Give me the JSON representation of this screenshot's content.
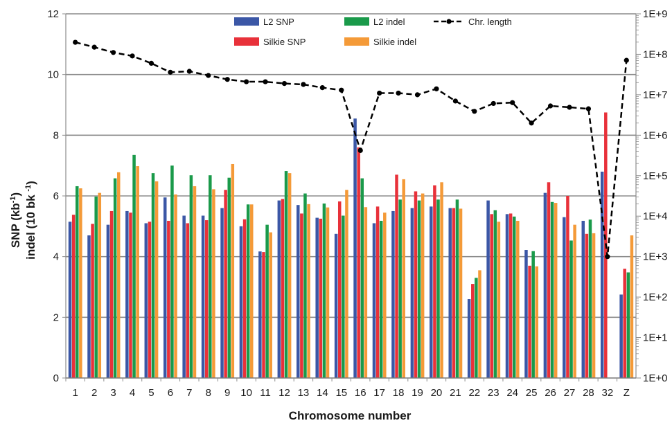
{
  "chart_data": {
    "type": "bar",
    "title": "",
    "xlabel": "Chromosome number",
    "ylabel_left": [
      "SNP (kb",
      "-1",
      ")",
      "indel (10 bk ",
      "-1",
      ")"
    ],
    "ylabel_right": "",
    "categories": [
      "1",
      "2",
      "3",
      "4",
      "5",
      "6",
      "7",
      "8",
      "9",
      "10",
      "11",
      "12",
      "13",
      "14",
      "15",
      "16",
      "17",
      "18",
      "19",
      "20",
      "21",
      "22",
      "23",
      "24",
      "25",
      "26",
      "27",
      "28",
      "32",
      "Z"
    ],
    "ylim_left": [
      0,
      12
    ],
    "y_ticks_left": [
      "0",
      "2",
      "4",
      "6",
      "8",
      "10",
      "12"
    ],
    "y2_scale": "log",
    "y2_range": [
      1,
      1000000000
    ],
    "y2_ticks": [
      "1E+0",
      "1E+1",
      "1E+2",
      "1E+3",
      "1E+4",
      "1E+5",
      "1E+6",
      "1E+7",
      "1E+8",
      "1E+9"
    ],
    "grid": true,
    "legend_position": "top-center",
    "series": [
      {
        "name": "L2 SNP",
        "color": "#3b57a6",
        "axis": "left",
        "values": [
          5.15,
          4.7,
          5.05,
          5.5,
          5.1,
          5.95,
          5.35,
          5.35,
          5.6,
          5.0,
          4.17,
          5.85,
          5.7,
          5.28,
          4.75,
          8.55,
          5.1,
          5.5,
          5.6,
          5.65,
          5.6,
          2.6,
          5.85,
          5.4,
          4.22,
          6.1,
          5.3,
          5.18,
          6.8,
          2.75
        ]
      },
      {
        "name": "Silkie SNP",
        "color": "#e8313a",
        "axis": "left",
        "values": [
          5.38,
          5.08,
          5.5,
          5.45,
          5.15,
          5.18,
          5.1,
          5.2,
          6.2,
          5.23,
          4.15,
          5.9,
          5.42,
          5.25,
          5.82,
          7.6,
          5.65,
          6.7,
          6.15,
          6.35,
          5.6,
          3.1,
          5.4,
          5.42,
          3.7,
          6.45,
          6.0,
          4.75,
          8.75,
          3.6
        ]
      },
      {
        "name": "L2 indel",
        "color": "#1a9a4a",
        "axis": "left",
        "values": [
          6.32,
          5.98,
          6.58,
          7.35,
          6.75,
          7.0,
          6.68,
          6.68,
          6.6,
          5.72,
          5.05,
          6.82,
          6.08,
          5.75,
          5.35,
          6.58,
          5.18,
          5.88,
          5.85,
          5.88,
          5.88,
          3.3,
          5.53,
          5.32,
          4.18,
          5.8,
          4.53,
          5.22,
          null,
          3.48
        ]
      },
      {
        "name": "Silkie indel",
        "color": "#f49a38",
        "axis": "left",
        "values": [
          6.25,
          6.1,
          6.78,
          6.98,
          6.48,
          6.05,
          6.32,
          6.22,
          7.05,
          5.72,
          4.8,
          6.75,
          5.73,
          5.62,
          6.2,
          5.63,
          5.45,
          6.55,
          6.08,
          6.45,
          5.58,
          3.55,
          5.15,
          5.18,
          3.68,
          5.77,
          5.05,
          4.77,
          null,
          4.7
        ]
      },
      {
        "name": "Chr. length",
        "color": "#000000",
        "axis": "right",
        "style": "dashed-line-with-dots",
        "values": [
          198000000,
          150000000,
          111000000,
          91000000,
          60000000,
          36000000,
          38000000,
          30000000,
          24000000,
          21000000,
          21000000,
          19000000,
          18000000,
          15000000,
          13000000,
          420000,
          11000000,
          11000000,
          10000000,
          14000000,
          7000000,
          3900000,
          6100000,
          6400000,
          2000000,
          5300000,
          4900000,
          4500000,
          1000,
          71000000
        ]
      }
    ]
  },
  "legend": {
    "items": [
      {
        "label": "L2 SNP",
        "color": "#3b57a6",
        "kind": "bar"
      },
      {
        "label": "L2 indel",
        "color": "#1a9a4a",
        "kind": "bar"
      },
      {
        "label": "Chr. length",
        "color": "#000000",
        "kind": "line"
      },
      {
        "label": "Silkie SNP",
        "color": "#e8313a",
        "kind": "bar"
      },
      {
        "label": "Silkie indel",
        "color": "#f49a38",
        "kind": "bar"
      }
    ]
  }
}
